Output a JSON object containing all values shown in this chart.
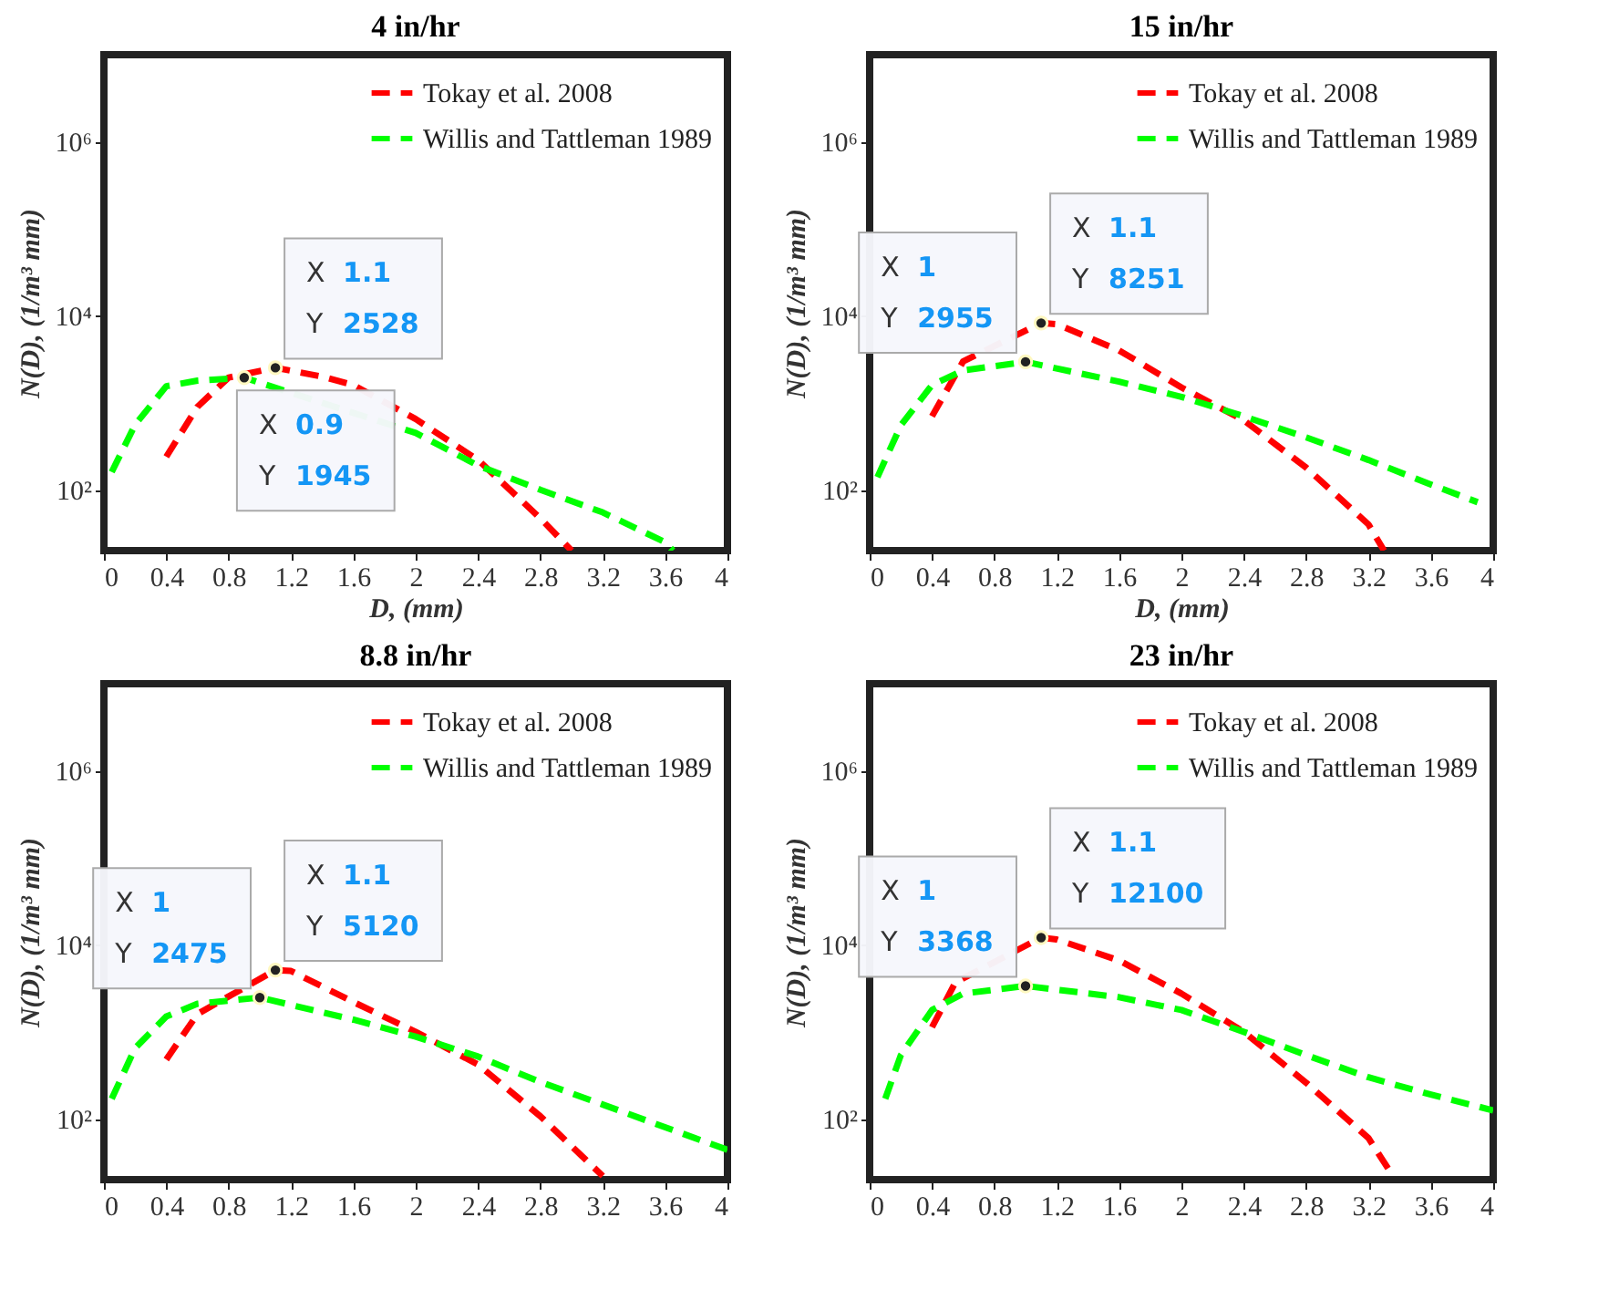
{
  "chart_data": [
    {
      "type": "line",
      "title": "4 in/hr",
      "xlabel": "D, (mm)",
      "ylabel": "N(D), (1/m³ mm)",
      "xlim": [
        0,
        4
      ],
      "xticks": [
        0,
        0.4,
        0.8,
        1.2,
        1.6,
        2,
        2.4,
        2.8,
        3.2,
        3.6,
        4
      ],
      "ylim": [
        20,
        10000000
      ],
      "yticks": [
        {
          "value": 100,
          "label": "10²"
        },
        {
          "value": 10000,
          "label": "10⁴"
        },
        {
          "value": 1000000,
          "label": "10⁶"
        }
      ],
      "log": "y",
      "legend": "top right",
      "line_style": "dashed",
      "series": [
        {
          "name": "Tokay et al. 2008",
          "color": "#ff0000",
          "x": [
            0.4,
            0.6,
            0.8,
            1.1,
            1.4,
            1.6,
            2.0,
            2.4,
            2.8,
            3.0
          ],
          "values": [
            240,
            900,
            1950,
            2528,
            2000,
            1600,
            650,
            220,
            47,
            20
          ]
        },
        {
          "name": "Willis and Tattleman 1989",
          "color": "#00ff00",
          "x": [
            0.05,
            0.2,
            0.4,
            0.6,
            0.9,
            2.0,
            2.4,
            2.8,
            3.2,
            3.6,
            3.65
          ],
          "values": [
            160,
            560,
            1550,
            1800,
            1945,
            450,
            190,
            100,
            55,
            25,
            20
          ]
        }
      ],
      "annotations": [
        {
          "text": "X 1.1\nY 2528",
          "x": 1.1,
          "y": 2528
        },
        {
          "text": "X 0.9\nY 1945",
          "x": 0.9,
          "y": 1945
        }
      ]
    },
    {
      "type": "line",
      "title": "15 in/hr",
      "xlabel": "D, (mm)",
      "ylabel": "N(D), (1/m³ mm)",
      "xlim": [
        0,
        4
      ],
      "xticks": [
        0,
        0.4,
        0.8,
        1.2,
        1.6,
        2,
        2.4,
        2.8,
        3.2,
        3.6,
        4
      ],
      "ylim": [
        20,
        10000000
      ],
      "yticks": [
        {
          "value": 100,
          "label": "10²"
        },
        {
          "value": 10000,
          "label": "10⁴"
        },
        {
          "value": 1000000,
          "label": "10⁶"
        }
      ],
      "log": "y",
      "legend": "top right",
      "line_style": "dashed",
      "series": [
        {
          "name": "Tokay et al. 2008",
          "color": "#ff0000",
          "x": [
            0.4,
            0.6,
            1.1,
            1.2,
            1.6,
            2.0,
            2.4,
            2.8,
            3.2,
            3.3
          ],
          "values": [
            700,
            3000,
            8251,
            8000,
            4000,
            1500,
            630,
            180,
            40,
            20
          ]
        },
        {
          "name": "Willis and Tattleman 1989",
          "color": "#00ff00",
          "x": [
            0.05,
            0.2,
            0.4,
            0.6,
            1.0,
            1.6,
            2.0,
            2.4,
            2.8,
            3.2,
            3.6,
            3.9
          ],
          "values": [
            140,
            550,
            1600,
            2350,
            2955,
            1750,
            1170,
            700,
            400,
            220,
            115,
            72
          ]
        }
      ],
      "annotations": [
        {
          "text": "X 1.1\nY 8251",
          "x": 1.1,
          "y": 8251
        },
        {
          "text": "X 1\nY 2955",
          "x": 1,
          "y": 2955
        }
      ]
    },
    {
      "type": "line",
      "title": "8.8 in/hr",
      "ylabel": "N(D), (1/m³ mm)",
      "xlim": [
        0,
        4
      ],
      "xticks": [
        0,
        0.4,
        0.8,
        1.2,
        1.6,
        2,
        2.4,
        2.8,
        3.2,
        3.6,
        4
      ],
      "ylim": [
        20,
        10000000
      ],
      "yticks": [
        {
          "value": 100,
          "label": "10²"
        },
        {
          "value": 10000,
          "label": "10⁴"
        },
        {
          "value": 1000000,
          "label": "10⁶"
        }
      ],
      "log": "y",
      "legend": "top right",
      "line_style": "dashed",
      "series": [
        {
          "name": "Tokay et al. 2008",
          "color": "#ff0000",
          "x": [
            0.4,
            0.6,
            1.1,
            1.2,
            1.6,
            2.0,
            2.4,
            2.8,
            3.2
          ],
          "values": [
            480,
            1600,
            5120,
            5000,
            2200,
            1000,
            420,
            107,
            22
          ]
        },
        {
          "name": "Willis and Tattleman 1989",
          "color": "#00ff00",
          "x": [
            0.05,
            0.2,
            0.4,
            0.6,
            1.0,
            1.6,
            2.0,
            2.4,
            2.8,
            3.2,
            3.6,
            4.0
          ],
          "values": [
            170,
            650,
            1500,
            2100,
            2475,
            1380,
            880,
            520,
            265,
            146,
            80,
            44
          ]
        }
      ],
      "annotations": [
        {
          "text": "X 1.1\nY 5120",
          "x": 1.1,
          "y": 5120
        },
        {
          "text": "X 1\nY 2475",
          "x": 1,
          "y": 2475
        }
      ]
    },
    {
      "type": "line",
      "title": "23 in/hr",
      "ylabel": "N(D), (1/m³ mm)",
      "xlim": [
        0,
        4
      ],
      "xticks": [
        0,
        0.4,
        0.8,
        1.2,
        1.6,
        2,
        2.4,
        2.8,
        3.2,
        3.6,
        4
      ],
      "ylim": [
        20,
        10000000
      ],
      "yticks": [
        {
          "value": 100,
          "label": "10²"
        },
        {
          "value": 10000,
          "label": "10⁴"
        },
        {
          "value": 1000000,
          "label": "10⁶"
        }
      ],
      "log": "y",
      "legend": "top right",
      "line_style": "dashed",
      "series": [
        {
          "name": "Tokay et al. 2008",
          "color": "#ff0000",
          "x": [
            0.4,
            0.55,
            1.1,
            1.2,
            1.6,
            2.0,
            2.4,
            2.8,
            3.2,
            3.35
          ],
          "values": [
            1130,
            3700,
            12100,
            11500,
            6600,
            2750,
            1000,
            260,
            60,
            23
          ]
        },
        {
          "name": "Willis and Tattleman 1989",
          "color": "#00ff00",
          "x": [
            0.1,
            0.2,
            0.4,
            0.6,
            1.0,
            1.6,
            2.0,
            2.4,
            2.8,
            3.2,
            3.6,
            4.0
          ],
          "values": [
            170,
            540,
            1780,
            2750,
            3368,
            2500,
            1780,
            1000,
            540,
            300,
            190,
            125
          ]
        }
      ],
      "annotations": [
        {
          "text": "X 1.1\nY 12100",
          "x": 1.1,
          "y": 12100
        },
        {
          "text": "X 1\nY 3368",
          "x": 1,
          "y": 3368
        }
      ]
    }
  ]
}
